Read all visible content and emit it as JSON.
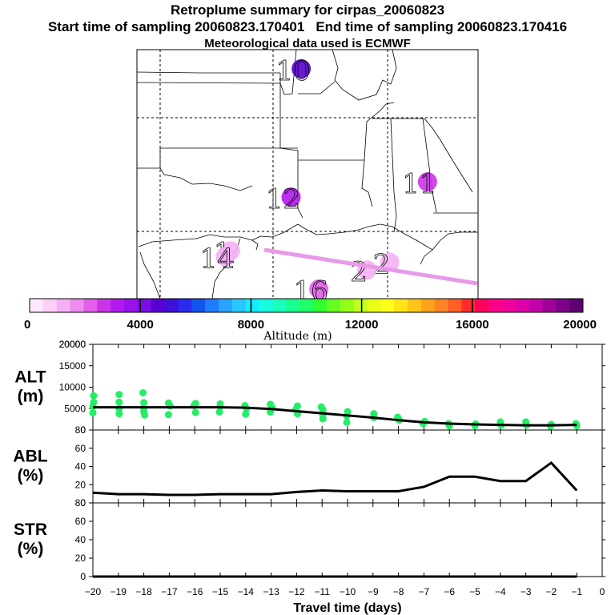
{
  "header": {
    "title": "Retroplume summary for cirpas_20060823",
    "start_label": "Start time of sampling 20060823.170401",
    "end_label": "End time of sampling 20060823.170416",
    "met_label": "Meteorological data used is ECMWF"
  },
  "map": {
    "markers": [
      {
        "label": "10",
        "lon": -89.5,
        "lat": 38.5,
        "altitude_m": 4500
      },
      {
        "label": "11",
        "lon": -84.5,
        "lat": 32.6,
        "altitude_m": 2800
      },
      {
        "label": "12",
        "lon": -89.9,
        "lat": 31.8,
        "altitude_m": 3200
      },
      {
        "label": "1",
        "lon": -92.3,
        "lat": 29.0,
        "altitude_m": 1300
      },
      {
        "label": "14",
        "lon": -92.5,
        "lat": 28.7,
        "altitude_m": 1200
      },
      {
        "label": "16",
        "lon": -88.8,
        "lat": 27.0,
        "altitude_m": 2000
      },
      {
        "label": "2",
        "lon": -86.0,
        "lat": 28.4,
        "altitude_m": 1400
      },
      {
        "label": "2",
        "lon": -86.9,
        "lat": 28.0,
        "altitude_m": 1400
      }
    ]
  },
  "colorbar": {
    "ticks": [
      "0",
      "4000",
      "8000",
      "12000",
      "16000",
      "20000"
    ],
    "label": "Altitude (m)",
    "colors": [
      "#ffe8ff",
      "#ffcff8",
      "#f5b0f5",
      "#ee8cee",
      "#e060e8",
      "#cc33e6",
      "#b31aee",
      "#9911ee",
      "#7a0de8",
      "#5a00d0",
      "#3e10d8",
      "#2a2af0",
      "#1155ee",
      "#1f7bff",
      "#2aa2ff",
      "#2ac6ff",
      "#15ecff",
      "#15ffe0",
      "#1affbd",
      "#18ff92",
      "#20ff66",
      "#30ff30",
      "#62ff20",
      "#93ff18",
      "#c2ff18",
      "#e8ff18",
      "#ffff18",
      "#ffe418",
      "#ffc418",
      "#ffa41a",
      "#ff8424",
      "#ff5e24",
      "#ff2c2c",
      "#ff005a",
      "#ff0088",
      "#f00098",
      "#dd00a8",
      "#c400a8",
      "#a0009a",
      "#7d0088",
      "#5e0070"
    ]
  },
  "chart_data": [
    {
      "type": "line",
      "name": "ALT",
      "ylabel": "ALT (m)",
      "ylim": [
        0,
        20000
      ],
      "yticks": [
        "0",
        "5000",
        "10000",
        "15000",
        "20000"
      ],
      "x": [
        -20,
        -19,
        -18,
        -17,
        -16,
        -15,
        -14,
        -13,
        -12,
        -11,
        -10,
        -9,
        -8,
        -7,
        -6,
        -5,
        -4,
        -3,
        -2,
        -1
      ],
      "series": [
        {
          "name": "mean altitude",
          "values": [
            5300,
            5300,
            5300,
            5300,
            5300,
            5300,
            5200,
            4900,
            4400,
            3900,
            3400,
            2900,
            2300,
            1800,
            1500,
            1300,
            1200,
            1100,
            1100,
            1200
          ]
        }
      ],
      "scatter": [
        [
          -20,
          5500
        ],
        [
          -20,
          6500
        ],
        [
          -20,
          4000
        ],
        [
          -20,
          8000
        ],
        [
          -19,
          5000
        ],
        [
          -19,
          6500
        ],
        [
          -19,
          3800
        ],
        [
          -19,
          8300
        ],
        [
          -18,
          5200
        ],
        [
          -18,
          6400
        ],
        [
          -18,
          4300
        ],
        [
          -18,
          3500
        ],
        [
          -18,
          8700
        ],
        [
          -17,
          5600
        ],
        [
          -17,
          6300
        ],
        [
          -17,
          3600
        ],
        [
          -16,
          5700
        ],
        [
          -16,
          6200
        ],
        [
          -16,
          4100
        ],
        [
          -15,
          5500
        ],
        [
          -15,
          6100
        ],
        [
          -15,
          4200
        ],
        [
          -14,
          5000
        ],
        [
          -14,
          5700
        ],
        [
          -14,
          3700
        ],
        [
          -13,
          5300
        ],
        [
          -13,
          6000
        ],
        [
          -13,
          4200
        ],
        [
          -12,
          4800
        ],
        [
          -12,
          3800
        ],
        [
          -12,
          5600
        ],
        [
          -11,
          4700
        ],
        [
          -11,
          3500
        ],
        [
          -11,
          2600
        ],
        [
          -11,
          5400
        ],
        [
          -10,
          4300
        ],
        [
          -10,
          3300
        ],
        [
          -10,
          1800
        ],
        [
          -9,
          3800
        ],
        [
          -9,
          2900
        ],
        [
          -8,
          2300
        ],
        [
          -8,
          3000
        ],
        [
          -7,
          2000
        ],
        [
          -7,
          1500
        ],
        [
          -6,
          1500
        ],
        [
          -6,
          1000
        ],
        [
          -5,
          1400
        ],
        [
          -5,
          1000
        ],
        [
          -4,
          1900
        ],
        [
          -4,
          1100
        ],
        [
          -3,
          1900
        ],
        [
          -3,
          1100
        ],
        [
          -2,
          1300
        ],
        [
          -2,
          900
        ],
        [
          -1,
          1500
        ],
        [
          -1,
          1000
        ]
      ]
    },
    {
      "type": "line",
      "name": "ABL",
      "ylabel": "ABL (%)",
      "ylim": [
        0,
        100
      ],
      "yticks": [
        "0",
        "20",
        "40",
        "60",
        "80"
      ],
      "x": [
        -20,
        -19,
        -18,
        -17,
        -16,
        -15,
        -14,
        -13,
        -12,
        -11,
        -10,
        -9,
        -8,
        -7,
        -6,
        -5,
        -4,
        -3,
        -2,
        -1
      ],
      "series": [
        {
          "name": "ABL fraction",
          "values": [
            14,
            12,
            12,
            11,
            11,
            12,
            12,
            12,
            15,
            17,
            16,
            16,
            16,
            22,
            36,
            36,
            30,
            30,
            55,
            17
          ]
        }
      ]
    },
    {
      "type": "line",
      "name": "STR",
      "ylabel": "STR (%)",
      "ylim": [
        0,
        100
      ],
      "yticks": [
        "0",
        "20",
        "40",
        "60",
        "80"
      ],
      "x": [
        -20,
        -19,
        -18,
        -17,
        -16,
        -15,
        -14,
        -13,
        -12,
        -11,
        -10,
        -9,
        -8,
        -7,
        -6,
        -5,
        -4,
        -3,
        -2,
        -1
      ],
      "series": [
        {
          "name": "stratosphere fraction",
          "values": [
            0,
            0,
            0,
            0,
            0,
            0,
            0,
            0,
            0,
            0,
            0,
            0,
            0,
            0,
            0,
            0,
            0,
            0,
            0,
            0
          ]
        }
      ],
      "xticks": [
        "−20",
        "−19",
        "−18",
        "−17",
        "−16",
        "−15",
        "−14",
        "−13",
        "−12",
        "−11",
        "−10",
        "−9",
        "−8",
        "−7",
        "−6",
        "−5",
        "−4",
        "−3",
        "−2",
        "−1",
        "0"
      ],
      "xlabel": "Travel time (days)"
    }
  ],
  "colors": {
    "points": "#22ee66",
    "line": "#000000"
  }
}
